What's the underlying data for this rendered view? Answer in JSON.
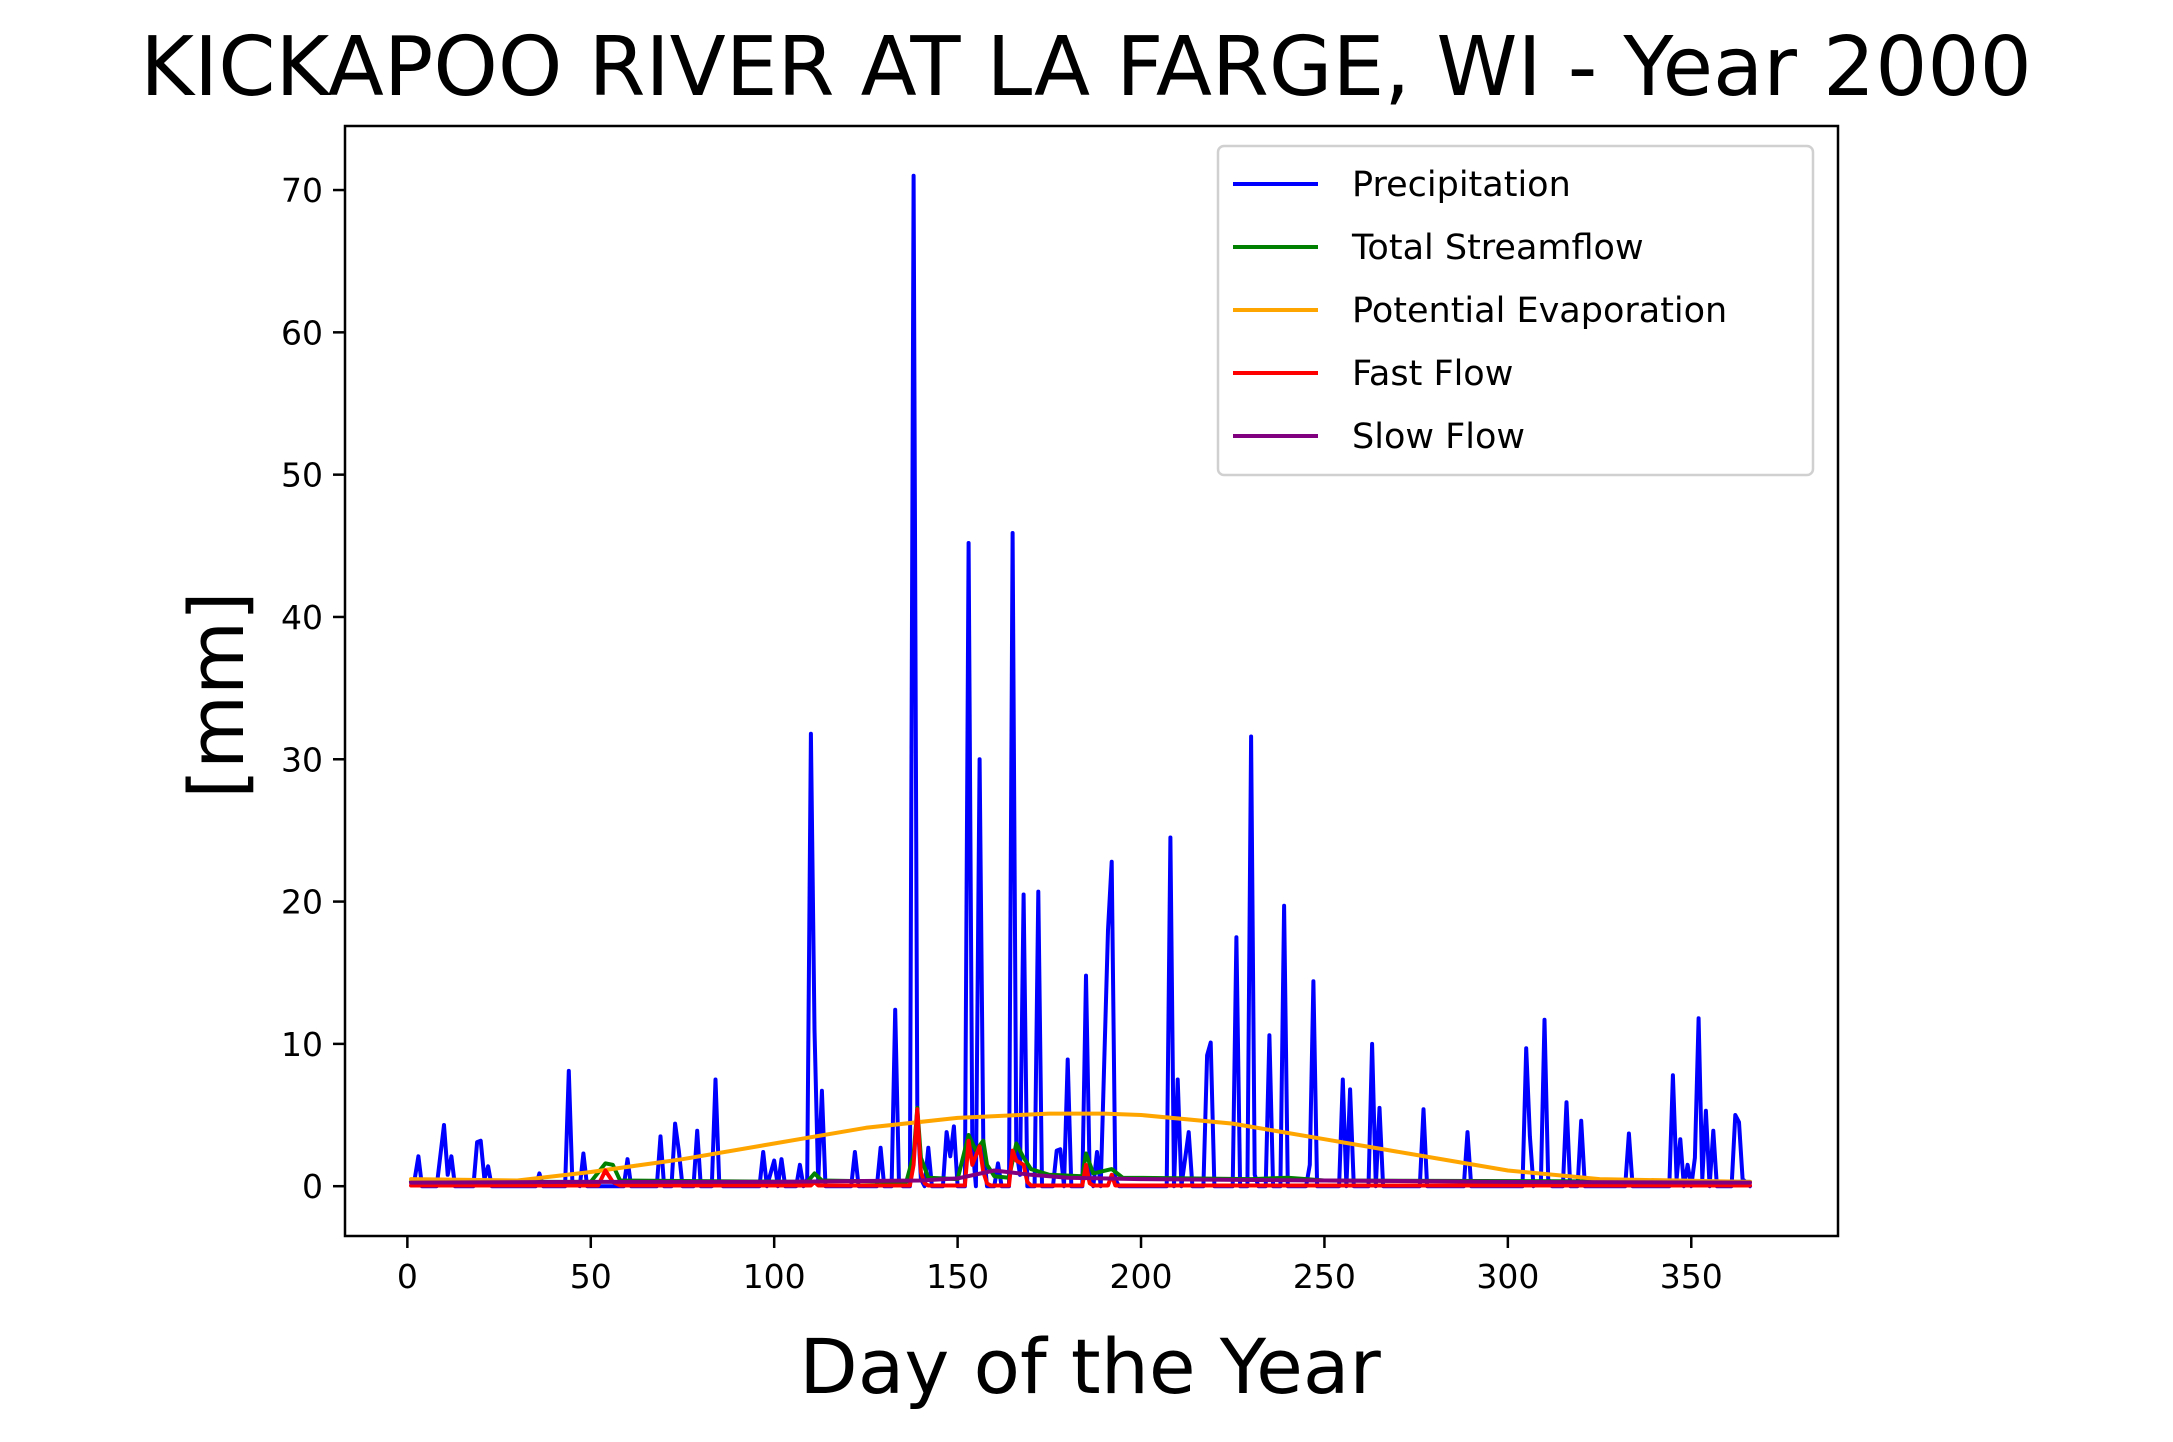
{
  "chart_data": {
    "type": "line",
    "title": "KICKAPOO RIVER AT LA FARGE, WI - Year 2000",
    "xlabel": "Day of the Year",
    "ylabel": "[mm]",
    "xlim": [
      -17,
      390
    ],
    "ylim": [
      -3.5,
      74.5
    ],
    "xticks": [
      0,
      50,
      100,
      150,
      200,
      250,
      300,
      350
    ],
    "yticks": [
      0,
      10,
      20,
      30,
      40,
      50,
      60,
      70
    ],
    "grid": false,
    "legend_position": "top-right",
    "series": [
      {
        "name": "Precipitation",
        "color": "#0000ff",
        "points": [
          [
            1,
            0.3
          ],
          [
            2,
            0.5
          ],
          [
            3,
            2.1
          ],
          [
            4,
            0
          ],
          [
            8,
            0
          ],
          [
            10,
            4.3
          ],
          [
            11,
            0.8
          ],
          [
            12,
            2.1
          ],
          [
            13,
            0
          ],
          [
            18,
            0
          ],
          [
            19,
            3.1
          ],
          [
            20,
            3.2
          ],
          [
            21,
            0.5
          ],
          [
            22,
            1.4
          ],
          [
            23,
            0
          ],
          [
            35,
            0
          ],
          [
            36,
            0.9
          ],
          [
            37,
            0
          ],
          [
            43,
            0
          ],
          [
            44,
            8.1
          ],
          [
            45,
            0.2
          ],
          [
            47,
            0
          ],
          [
            48,
            2.3
          ],
          [
            49,
            0
          ],
          [
            59,
            0
          ],
          [
            60,
            1.9
          ],
          [
            61,
            0
          ],
          [
            68,
            0
          ],
          [
            69,
            3.5
          ],
          [
            70,
            0
          ],
          [
            72,
            0
          ],
          [
            73,
            4.4
          ],
          [
            74,
            2.5
          ],
          [
            75,
            0
          ],
          [
            78,
            0
          ],
          [
            79,
            3.9
          ],
          [
            80,
            0
          ],
          [
            83,
            0
          ],
          [
            84,
            7.5
          ],
          [
            85,
            0.3
          ],
          [
            86,
            0
          ],
          [
            96,
            0
          ],
          [
            97,
            2.4
          ],
          [
            98,
            0
          ],
          [
            100,
            1.8
          ],
          [
            101,
            0
          ],
          [
            102,
            1.9
          ],
          [
            103,
            0
          ],
          [
            106,
            0
          ],
          [
            107,
            1.5
          ],
          [
            108,
            0
          ],
          [
            109,
            0.5
          ],
          [
            110,
            31.8
          ],
          [
            111,
            11
          ],
          [
            112,
            0.3
          ],
          [
            113,
            6.7
          ],
          [
            114,
            0
          ],
          [
            121,
            0
          ],
          [
            122,
            2.4
          ],
          [
            123,
            0
          ],
          [
            128,
            0
          ],
          [
            129,
            2.7
          ],
          [
            130,
            0
          ],
          [
            132,
            0
          ],
          [
            133,
            12.4
          ],
          [
            134,
            0.5
          ],
          [
            135,
            0
          ],
          [
            137,
            0
          ],
          [
            138,
            71
          ],
          [
            139,
            5.3
          ],
          [
            140,
            0.5
          ],
          [
            141,
            0
          ],
          [
            142,
            2.7
          ],
          [
            143,
            0
          ],
          [
            146,
            0
          ],
          [
            147,
            3.8
          ],
          [
            148,
            2.1
          ],
          [
            149,
            4.2
          ],
          [
            150,
            0
          ],
          [
            152,
            0
          ],
          [
            153,
            45.2
          ],
          [
            154,
            3
          ],
          [
            155,
            0
          ],
          [
            156,
            30
          ],
          [
            157,
            3
          ],
          [
            158,
            0
          ],
          [
            160,
            0
          ],
          [
            161,
            1.6
          ],
          [
            162,
            0
          ],
          [
            164,
            0
          ],
          [
            165,
            45.9
          ],
          [
            166,
            2.5
          ],
          [
            167,
            0.8
          ],
          [
            168,
            20.5
          ],
          [
            169,
            0
          ],
          [
            171,
            0
          ],
          [
            172,
            20.7
          ],
          [
            173,
            0
          ],
          [
            176,
            0
          ],
          [
            177,
            2.5
          ],
          [
            178,
            2.6
          ],
          [
            179,
            0
          ],
          [
            180,
            8.9
          ],
          [
            181,
            0
          ],
          [
            184,
            0
          ],
          [
            185,
            14.8
          ],
          [
            186,
            0.6
          ],
          [
            187,
            0
          ],
          [
            188,
            2.4
          ],
          [
            189,
            0
          ],
          [
            191,
            18
          ],
          [
            192,
            22.8
          ],
          [
            193,
            0.5
          ],
          [
            194,
            0
          ],
          [
            207,
            0
          ],
          [
            208,
            24.5
          ],
          [
            209,
            0
          ],
          [
            210,
            7.5
          ],
          [
            211,
            0
          ],
          [
            213,
            3.8
          ],
          [
            214,
            0
          ],
          [
            217,
            0
          ],
          [
            218,
            9.2
          ],
          [
            219,
            10.1
          ],
          [
            220,
            0
          ],
          [
            225,
            0
          ],
          [
            226,
            17.5
          ],
          [
            227,
            0
          ],
          [
            229,
            0
          ],
          [
            230,
            31.6
          ],
          [
            231,
            0.8
          ],
          [
            232,
            0
          ],
          [
            234,
            0
          ],
          [
            235,
            10.6
          ],
          [
            236,
            0
          ],
          [
            238,
            0
          ],
          [
            239,
            19.7
          ],
          [
            240,
            0
          ],
          [
            245,
            0
          ],
          [
            246,
            1.5
          ],
          [
            247,
            14.4
          ],
          [
            248,
            0
          ],
          [
            254,
            0
          ],
          [
            255,
            7.5
          ],
          [
            256,
            0
          ],
          [
            257,
            6.8
          ],
          [
            258,
            0
          ],
          [
            262,
            0
          ],
          [
            263,
            10
          ],
          [
            264,
            0
          ],
          [
            265,
            5.5
          ],
          [
            266,
            0
          ],
          [
            276,
            0
          ],
          [
            277,
            5.4
          ],
          [
            278,
            0
          ],
          [
            288,
            0
          ],
          [
            289,
            3.8
          ],
          [
            290,
            0
          ],
          [
            304,
            0
          ],
          [
            305,
            9.7
          ],
          [
            306,
            3.5
          ],
          [
            307,
            0
          ],
          [
            309,
            0.3
          ],
          [
            310,
            11.7
          ],
          [
            311,
            0.5
          ],
          [
            312,
            0
          ],
          [
            315,
            0
          ],
          [
            316,
            5.9
          ],
          [
            317,
            0
          ],
          [
            319,
            0
          ],
          [
            320,
            4.6
          ],
          [
            321,
            0
          ],
          [
            332,
            0
          ],
          [
            333,
            3.7
          ],
          [
            334,
            0
          ],
          [
            344,
            0
          ],
          [
            345,
            7.8
          ],
          [
            346,
            0.5
          ],
          [
            347,
            3.3
          ],
          [
            348,
            0
          ],
          [
            349,
            1.5
          ],
          [
            350,
            0
          ],
          [
            351,
            2
          ],
          [
            352,
            11.8
          ],
          [
            353,
            0.5
          ],
          [
            354,
            5.3
          ],
          [
            355,
            0
          ],
          [
            356,
            3.9
          ],
          [
            357,
            0
          ],
          [
            361,
            0
          ],
          [
            362,
            5
          ],
          [
            363,
            4.5
          ],
          [
            364,
            0.5
          ],
          [
            366,
            0
          ]
        ]
      },
      {
        "name": "Total Streamflow",
        "color": "#008000",
        "points": [
          [
            1,
            0.3
          ],
          [
            50,
            0.3
          ],
          [
            54,
            1.6
          ],
          [
            56,
            1.5
          ],
          [
            58,
            0.4
          ],
          [
            109,
            0.3
          ],
          [
            111,
            0.9
          ],
          [
            113,
            0.4
          ],
          [
            136,
            0.3
          ],
          [
            138,
            2.2
          ],
          [
            139,
            5.5
          ],
          [
            140,
            2
          ],
          [
            142,
            0.6
          ],
          [
            150,
            0.5
          ],
          [
            153,
            3.6
          ],
          [
            155,
            2.5
          ],
          [
            157,
            3.2
          ],
          [
            158,
            1.5
          ],
          [
            160,
            0.7
          ],
          [
            164,
            0.6
          ],
          [
            166,
            3
          ],
          [
            168,
            2
          ],
          [
            170,
            1.2
          ],
          [
            175,
            0.8
          ],
          [
            184,
            0.7
          ],
          [
            185,
            2.3
          ],
          [
            187,
            0.9
          ],
          [
            192,
            1.2
          ],
          [
            195,
            0.6
          ],
          [
            230,
            0.5
          ],
          [
            240,
            0.6
          ],
          [
            250,
            0.4
          ],
          [
            366,
            0.3
          ]
        ]
      },
      {
        "name": "Potential Evaporation",
        "color": "#ffa500",
        "points": [
          [
            1,
            0.5
          ],
          [
            30,
            0.4
          ],
          [
            50,
            1
          ],
          [
            75,
            1.9
          ],
          [
            100,
            3
          ],
          [
            125,
            4.1
          ],
          [
            150,
            4.8
          ],
          [
            175,
            5.1
          ],
          [
            190,
            5.1
          ],
          [
            200,
            5
          ],
          [
            225,
            4.4
          ],
          [
            250,
            3.3
          ],
          [
            275,
            2.2
          ],
          [
            300,
            1.1
          ],
          [
            325,
            0.5
          ],
          [
            366,
            0.3
          ]
        ]
      },
      {
        "name": "Fast Flow",
        "color": "#ff0000",
        "points": [
          [
            1,
            0.05
          ],
          [
            52,
            0.05
          ],
          [
            54,
            1.1
          ],
          [
            56,
            0.3
          ],
          [
            58,
            0.05
          ],
          [
            110,
            0.05
          ],
          [
            111,
            0.3
          ],
          [
            112,
            0.05
          ],
          [
            137,
            0.05
          ],
          [
            138,
            1.5
          ],
          [
            139,
            5.4
          ],
          [
            140,
            1
          ],
          [
            141,
            0.2
          ],
          [
            142,
            0.05
          ],
          [
            152,
            0.05
          ],
          [
            153,
            3.2
          ],
          [
            154,
            1.5
          ],
          [
            156,
            2.8
          ],
          [
            157,
            1
          ],
          [
            158,
            0.2
          ],
          [
            159,
            0.05
          ],
          [
            164,
            0.05
          ],
          [
            165,
            2.5
          ],
          [
            166,
            1.8
          ],
          [
            168,
            1.5
          ],
          [
            169,
            0.3
          ],
          [
            170,
            0.05
          ],
          [
            184,
            0.05
          ],
          [
            185,
            1.5
          ],
          [
            186,
            0.2
          ],
          [
            187,
            0.05
          ],
          [
            191,
            0.05
          ],
          [
            192,
            0.8
          ],
          [
            193,
            0.05
          ],
          [
            366,
            0.05
          ]
        ]
      },
      {
        "name": "Slow Flow",
        "color": "#800080",
        "points": [
          [
            1,
            0.25
          ],
          [
            50,
            0.3
          ],
          [
            100,
            0.3
          ],
          [
            140,
            0.4
          ],
          [
            150,
            0.55
          ],
          [
            160,
            1.1
          ],
          [
            170,
            0.8
          ],
          [
            180,
            0.6
          ],
          [
            200,
            0.5
          ],
          [
            250,
            0.4
          ],
          [
            300,
            0.3
          ],
          [
            366,
            0.25
          ]
        ]
      }
    ]
  }
}
